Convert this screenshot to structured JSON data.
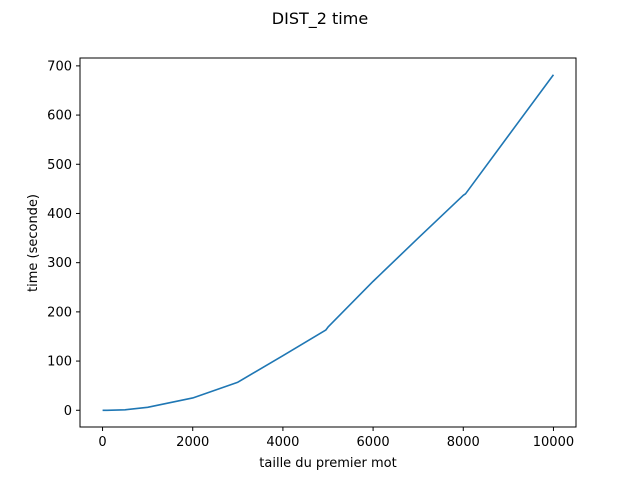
{
  "chart_data": {
    "type": "line",
    "title": "DIST_2 time",
    "xlabel": "taille du premier mot",
    "ylabel": "time (seconde)",
    "xlim": [
      -500,
      10500
    ],
    "ylim": [
      -34,
      716
    ],
    "xticks": [
      0,
      2000,
      4000,
      6000,
      8000,
      10000
    ],
    "yticks": [
      0,
      100,
      200,
      300,
      400,
      500,
      600,
      700
    ],
    "grid": false,
    "series": [
      {
        "color": "#1f77b4",
        "x": [
          1,
          10,
          50,
          100,
          500,
          1000,
          2000,
          3000,
          4000,
          4950,
          5000,
          6000,
          7000,
          8000,
          8050,
          9000,
          10000
        ],
        "y": [
          0,
          0,
          0,
          0,
          1,
          6,
          25,
          57,
          111,
          163,
          169,
          262,
          350,
          437,
          440,
          558,
          682
        ]
      }
    ]
  }
}
